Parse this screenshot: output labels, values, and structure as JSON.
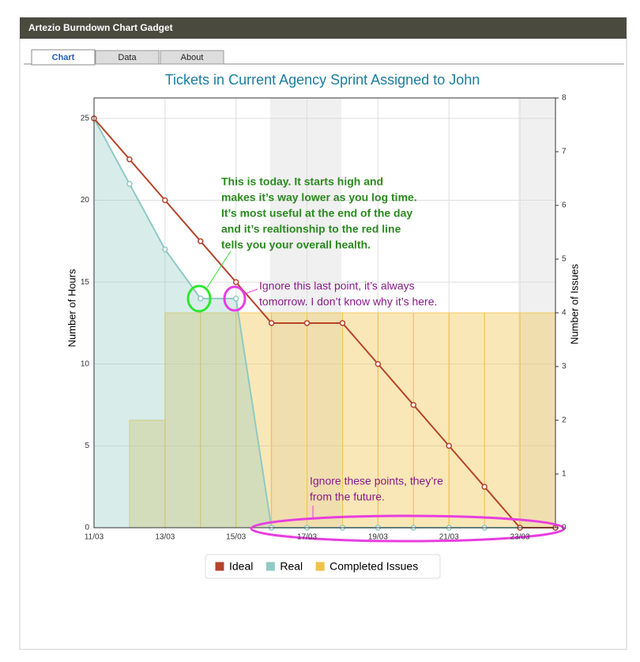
{
  "header": {
    "title": "Artezio Burndown Chart Gadget"
  },
  "tabs": [
    "Chart",
    "Data",
    "About"
  ],
  "chart_data": {
    "type": "combo",
    "title": "Tickets in Current Agency Sprint Assigned to John",
    "ylabel": "Number of Hours",
    "y2label": "Number of Issues",
    "categories": [
      "11/03",
      null,
      "13/03",
      null,
      "15/03",
      null,
      "17/03",
      null,
      "19/03",
      null,
      "21/03",
      null,
      "23/03",
      null
    ],
    "series": [
      {
        "name": "Ideal",
        "type": "line",
        "color": "#b5432a",
        "values": [
          25,
          22.5,
          20,
          17.5,
          15,
          12.5,
          12.5,
          12.5,
          10,
          7.5,
          5,
          2.5,
          0,
          0
        ]
      },
      {
        "name": "Real",
        "type": "area",
        "color": "#8ecac3",
        "values": [
          25,
          21,
          17,
          14,
          14,
          0,
          0,
          0,
          0,
          0,
          0,
          0,
          0,
          0
        ]
      },
      {
        "name": "Completed Issues",
        "type": "bar",
        "axis": "y2",
        "color": "#f0c24a",
        "values": [
          0,
          2,
          4,
          4,
          4,
          4,
          4,
          4,
          4,
          4,
          4,
          4,
          4,
          null
        ]
      }
    ],
    "ylim": [
      0,
      26.25
    ],
    "yticks": [
      0,
      5,
      10,
      15,
      20,
      25
    ],
    "y2lim": [
      0,
      8
    ],
    "y2ticks": [
      0,
      1,
      2,
      3,
      4,
      5,
      6,
      7,
      8
    ],
    "grid": true,
    "legend": "bottom",
    "annotations": [
      [
        "This is today. It starts high and",
        "makes it’s way lower as you log time.",
        "It’s most useful at the end of the day",
        "and it’s realtionship to the red line",
        "tells you your overall health."
      ],
      [
        "Ignore this last point, it’s always",
        "tomorrow. I don’t know why it’s here."
      ],
      [
        "Ignore these points, they’re",
        "from the future."
      ]
    ]
  }
}
